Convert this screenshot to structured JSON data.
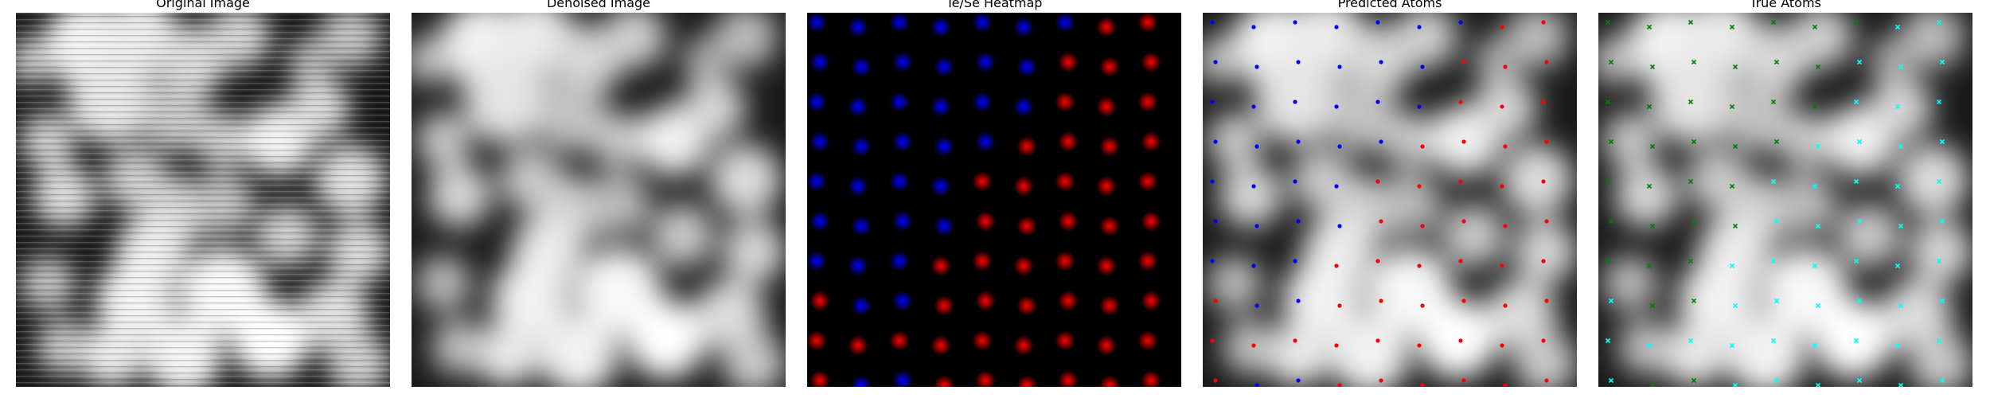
{
  "panels": [
    {
      "id": "original",
      "title": "Original Image",
      "kind": "grayscale",
      "noise": true
    },
    {
      "id": "denoised",
      "title": "Denoised Image",
      "kind": "grayscale",
      "noise": false
    },
    {
      "id": "heatmap",
      "title": "Te/Se Heatmap",
      "kind": "heatmap"
    },
    {
      "id": "predicted",
      "title": "Predicted Atoms",
      "kind": "overlay",
      "marker": "dot",
      "colors": [
        "#ff0000",
        "#0000ff"
      ]
    },
    {
      "id": "true",
      "title": "True Atoms",
      "kind": "overlay",
      "marker": "x",
      "colors": [
        "#00ffff",
        "#008000"
      ]
    }
  ],
  "colors": {
    "te": "#ff0000",
    "se": "#0000ff",
    "true_te": "#00ffff",
    "true_se": "#008000"
  }
}
